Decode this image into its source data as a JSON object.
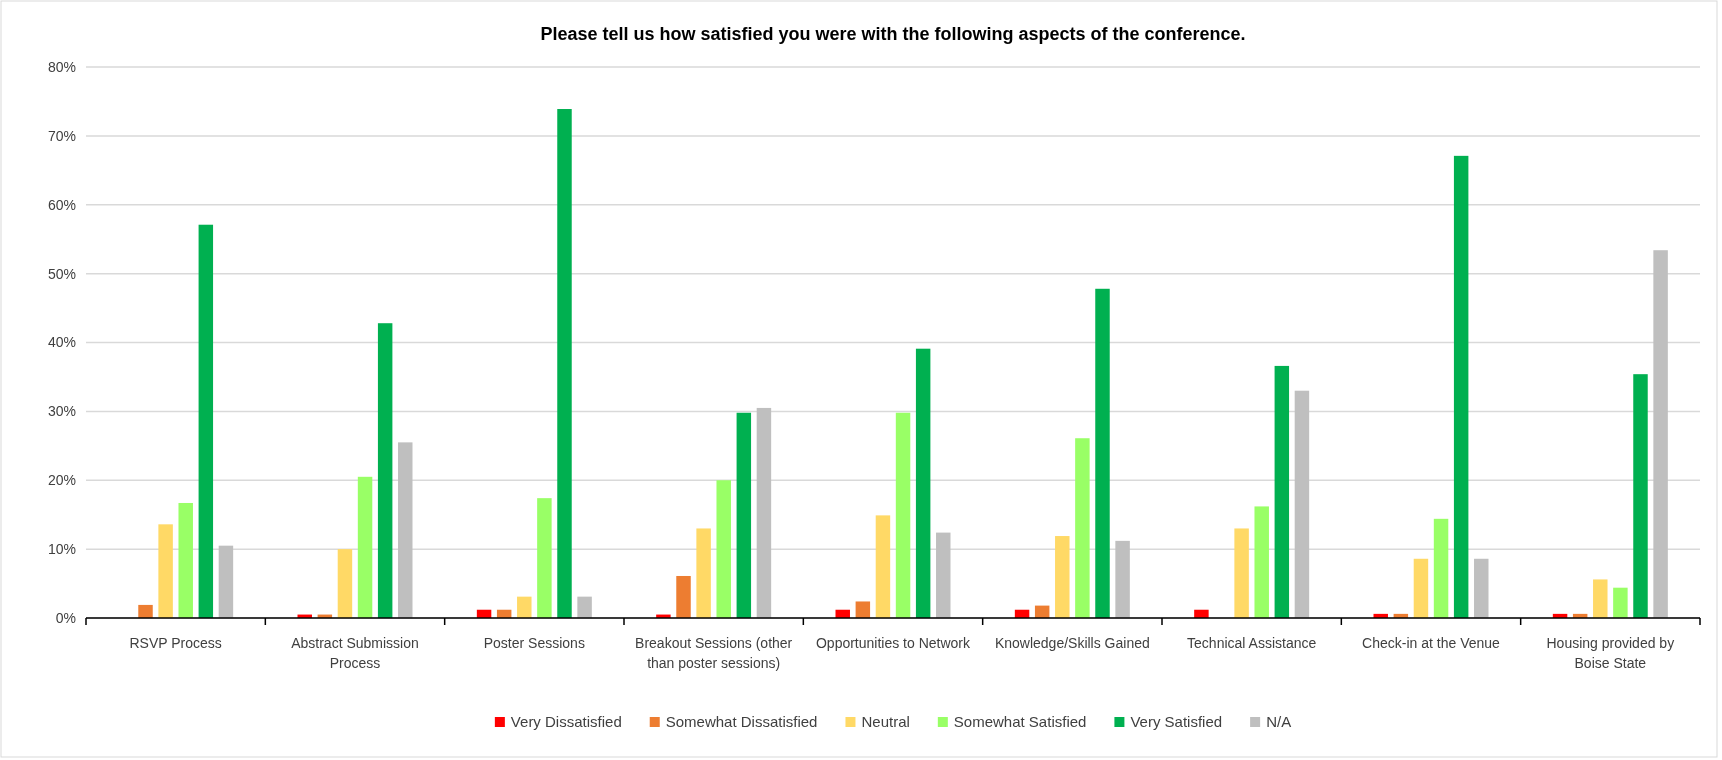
{
  "chart_data": {
    "type": "bar",
    "title": "Please tell us how satisfied you were with the following aspects of the conference.",
    "categories": [
      "RSVP Process",
      "Abstract Submission Process",
      "Poster Sessions",
      "Breakout Sessions (other than poster sessions)",
      "Opportunities to Network",
      "Knowledge/Skills Gained",
      "Technical Assistance",
      "Check-in at the Venue",
      "Housing provided by Boise State"
    ],
    "series": [
      {
        "name": "Very Dissatisfied",
        "color": "#ff0000",
        "values": [
          0,
          0.5,
          1.2,
          0.5,
          1.2,
          1.2,
          1.2,
          0.6,
          0.6
        ]
      },
      {
        "name": "Somewhat Dissatisfied",
        "color": "#ed7d31",
        "values": [
          1.9,
          0.5,
          1.2,
          6.1,
          2.4,
          1.8,
          0,
          0.6,
          0.6
        ]
      },
      {
        "name": "Neutral",
        "color": "#ffd966",
        "values": [
          13.6,
          10,
          3.1,
          13,
          14.9,
          11.9,
          13,
          8.6,
          5.6
        ]
      },
      {
        "name": "Somewhat Satisfied",
        "color": "#99ff66",
        "values": [
          16.7,
          20.5,
          17.4,
          20,
          29.8,
          26.1,
          16.2,
          14.4,
          4.4
        ]
      },
      {
        "name": "Very Satisfied",
        "color": "#00b050",
        "values": [
          57.1,
          42.8,
          73.9,
          29.8,
          39.1,
          47.8,
          36.6,
          67.1,
          35.4
        ]
      },
      {
        "name": "N/A",
        "color": "#bfbfbf",
        "values": [
          10.5,
          25.5,
          3.1,
          30.5,
          12.4,
          11.2,
          33,
          8.6,
          53.4
        ]
      }
    ],
    "ylim": [
      0,
      80
    ],
    "yticks": [
      {
        "value": 0,
        "label": "0%"
      },
      {
        "value": 10,
        "label": "10%"
      },
      {
        "value": 20,
        "label": "20%"
      },
      {
        "value": 30,
        "label": "30%"
      },
      {
        "value": 40,
        "label": "40%"
      },
      {
        "value": 50,
        "label": "50%"
      },
      {
        "value": 60,
        "label": "60%"
      },
      {
        "value": 70,
        "label": "70%"
      },
      {
        "value": 80,
        "label": "80%"
      }
    ],
    "grid": "y",
    "legend": "bottom"
  }
}
